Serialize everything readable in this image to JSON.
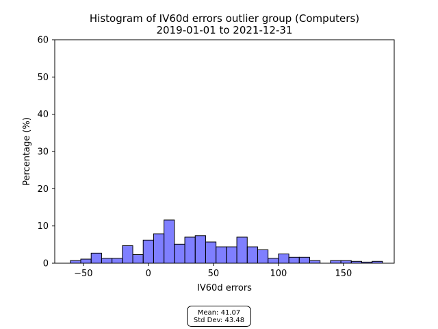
{
  "chart_data": {
    "type": "bar",
    "title": "Histogram of IV60d errors outlier group (Computers)",
    "subtitle": "2019-01-01 to 2021-12-31",
    "xlabel": "IV60d errors",
    "ylabel": "Percentage (%)",
    "xlim": [
      -72,
      189
    ],
    "ylim": [
      0,
      60
    ],
    "xticks": [
      -50,
      0,
      50,
      100,
      150
    ],
    "xtick_labels": [
      "−50",
      "0",
      "50",
      "100",
      "150"
    ],
    "yticks": [
      0,
      10,
      20,
      30,
      40,
      50,
      60
    ],
    "ytick_labels": [
      "0",
      "10",
      "20",
      "30",
      "40",
      "50",
      "60"
    ],
    "grid": false,
    "bar_color": "#0000ff",
    "bar_opacity": 0.5,
    "bar_edge_color": "#000000",
    "bins": [
      {
        "x0": -60,
        "x1": -52,
        "value": 0.7
      },
      {
        "x0": -52,
        "x1": -44,
        "value": 1.1
      },
      {
        "x0": -44,
        "x1": -36,
        "value": 2.7
      },
      {
        "x0": -36,
        "x1": -28,
        "value": 1.3
      },
      {
        "x0": -28,
        "x1": -20,
        "value": 1.3
      },
      {
        "x0": -20,
        "x1": -12,
        "value": 4.7
      },
      {
        "x0": -12,
        "x1": -4,
        "value": 2.3
      },
      {
        "x0": -4,
        "x1": 4,
        "value": 6.2
      },
      {
        "x0": 4,
        "x1": 12,
        "value": 7.9
      },
      {
        "x0": 12,
        "x1": 20,
        "value": 11.6
      },
      {
        "x0": 20,
        "x1": 28,
        "value": 5.1
      },
      {
        "x0": 28,
        "x1": 36,
        "value": 7.0
      },
      {
        "x0": 36,
        "x1": 44,
        "value": 7.4
      },
      {
        "x0": 44,
        "x1": 52,
        "value": 5.7
      },
      {
        "x0": 52,
        "x1": 60,
        "value": 4.4
      },
      {
        "x0": 60,
        "x1": 68,
        "value": 4.4
      },
      {
        "x0": 68,
        "x1": 76,
        "value": 7.0
      },
      {
        "x0": 76,
        "x1": 84,
        "value": 4.4
      },
      {
        "x0": 84,
        "x1": 92,
        "value": 3.6
      },
      {
        "x0": 92,
        "x1": 100,
        "value": 1.3
      },
      {
        "x0": 100,
        "x1": 108,
        "value": 2.5
      },
      {
        "x0": 108,
        "x1": 116,
        "value": 1.6
      },
      {
        "x0": 116,
        "x1": 124,
        "value": 1.6
      },
      {
        "x0": 124,
        "x1": 132,
        "value": 0.7
      },
      {
        "x0": 140,
        "x1": 148,
        "value": 0.7
      },
      {
        "x0": 148,
        "x1": 156,
        "value": 0.7
      },
      {
        "x0": 156,
        "x1": 164,
        "value": 0.5
      },
      {
        "x0": 164,
        "x1": 172,
        "value": 0.3
      },
      {
        "x0": 172,
        "x1": 180,
        "value": 0.5
      }
    ],
    "stats": {
      "mean_label": "Mean: 41.07",
      "std_label": "Std Dev: 43.48"
    }
  }
}
